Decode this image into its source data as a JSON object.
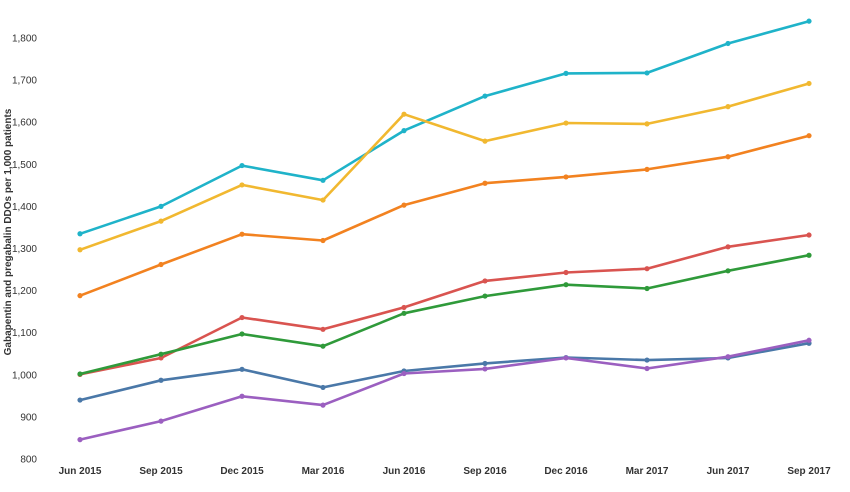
{
  "chart_data": {
    "type": "line",
    "title": "",
    "ylabel": "Gabapentin and pregabalin DDOs per 1,000 patients",
    "xlabel": "",
    "categories": [
      "Jun 2015",
      "Sep 2015",
      "Dec 2015",
      "Mar 2016",
      "Jun 2016",
      "Sep 2016",
      "Dec 2016",
      "Mar 2017",
      "Jun 2017",
      "Sep 2017"
    ],
    "ylim": [
      800,
      1850
    ],
    "yticks": [
      "800",
      "900",
      "1,000",
      "1,100",
      "1,200",
      "1,300",
      "1,400",
      "1,500",
      "1,600",
      "1,700",
      "1,800"
    ],
    "grid": false,
    "legend": "none",
    "series": [
      {
        "color": "#1fb3c9",
        "values": [
          1335,
          1400,
          1497,
          1462,
          1580,
          1662,
          1716,
          1717,
          1787,
          1840
        ]
      },
      {
        "color": "#f1b830",
        "values": [
          1297,
          1365,
          1451,
          1415,
          1619,
          1555,
          1598,
          1596,
          1637,
          1692
        ]
      },
      {
        "color": "#f28220",
        "values": [
          1188,
          1262,
          1334,
          1319,
          1403,
          1455,
          1470,
          1488,
          1518,
          1568
        ]
      },
      {
        "color": "#d95450",
        "values": [
          1001,
          1040,
          1136,
          1108,
          1160,
          1223,
          1243,
          1252,
          1304,
          1332
        ]
      },
      {
        "color": "#2f9a3a",
        "values": [
          1002,
          1049,
          1097,
          1068,
          1146,
          1187,
          1214,
          1205,
          1247,
          1284
        ]
      },
      {
        "color": "#4a78a8",
        "values": [
          940,
          987,
          1013,
          970,
          1009,
          1027,
          1041,
          1035,
          1040,
          1075
        ]
      },
      {
        "color": "#9b5fc0",
        "values": [
          846,
          890,
          949,
          928,
          1003,
          1014,
          1040,
          1015,
          1043,
          1082
        ]
      }
    ]
  }
}
